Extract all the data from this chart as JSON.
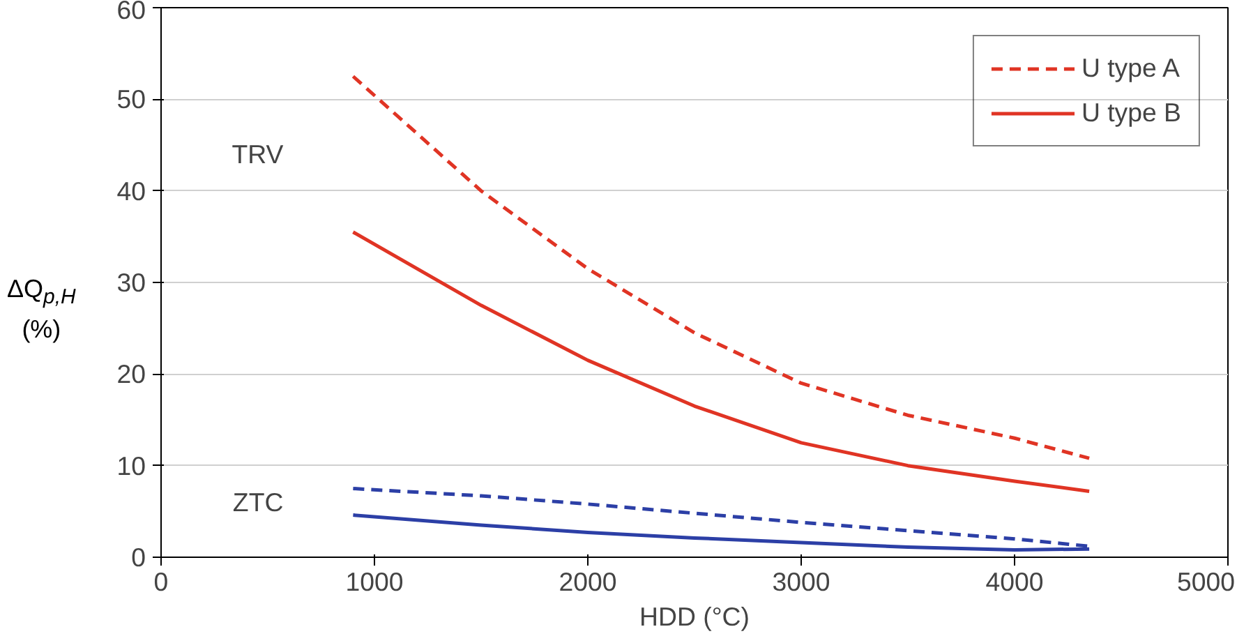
{
  "chart_data": {
    "type": "line",
    "xlabel": "HDD (°C)",
    "ylabel": "ΔQ$_{p,H}$ (%)",
    "xlim": [
      0,
      5000
    ],
    "xticks": [
      0,
      1000,
      2000,
      3000,
      4000,
      5000
    ],
    "ylim": [
      0,
      60
    ],
    "yticks": [
      0,
      10,
      20,
      30,
      40,
      50,
      60
    ],
    "grid": "y",
    "legend": "top right",
    "series": [
      {
        "name": "U type A",
        "color": "#e03424",
        "line_style": "dashed",
        "x": [
          900,
          1500,
          2000,
          2500,
          3000,
          3500,
          4000,
          4350
        ],
        "values": [
          52.5,
          40,
          31.5,
          24.5,
          19,
          15.5,
          13,
          10.8
        ]
      },
      {
        "name": "U type B",
        "color": "#e03424",
        "line_style": "solid",
        "x": [
          900,
          1500,
          2000,
          2500,
          3000,
          3500,
          4000,
          4350
        ],
        "values": [
          35.5,
          27.5,
          21.5,
          16.5,
          12.5,
          10,
          8.3,
          7.2
        ]
      },
      {
        "color": "#2c3fa6",
        "line_style": "dashed",
        "x": [
          900,
          1500,
          2000,
          2500,
          3000,
          3500,
          4000,
          4350
        ],
        "values": [
          7.5,
          6.7,
          5.8,
          4.8,
          3.8,
          2.9,
          2,
          1.2
        ]
      },
      {
        "color": "#2c3fa6",
        "line_style": "solid",
        "x": [
          900,
          1500,
          2000,
          2500,
          3000,
          3500,
          4000,
          4350
        ],
        "values": [
          4.6,
          3.5,
          2.7,
          2.1,
          1.6,
          1.1,
          0.8,
          0.9
        ]
      }
    ],
    "annotations": [
      "TRV",
      "ZTC"
    ]
  }
}
